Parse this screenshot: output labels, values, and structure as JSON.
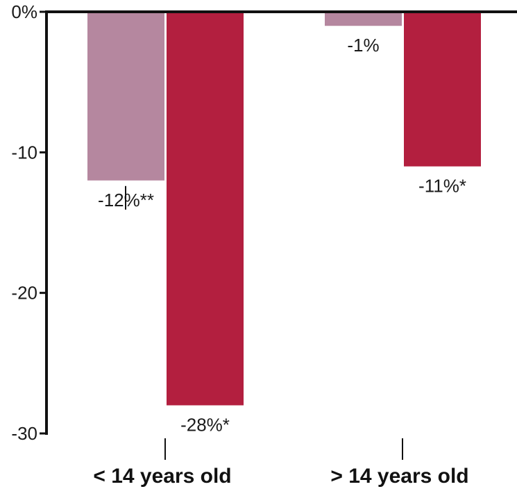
{
  "chart_data": {
    "type": "bar",
    "categories": [
      "< 14 years old",
      "> 14 years old"
    ],
    "series": [
      {
        "values": [
          -12,
          -1
        ],
        "labels": [
          "-12%**",
          "-1%"
        ],
        "color": "#b5879f"
      },
      {
        "values": [
          -28,
          -11
        ],
        "labels": [
          "-28%*",
          "-11%*"
        ],
        "color": "#b31f3f"
      }
    ],
    "ylim": [
      -30,
      0
    ],
    "yticks": [
      0,
      -10,
      -20,
      -30
    ],
    "ytick_labels": [
      "0%",
      "-10",
      "-20",
      "-30"
    ],
    "title": "",
    "xlabel": "",
    "ylabel": "",
    "grid": false
  }
}
